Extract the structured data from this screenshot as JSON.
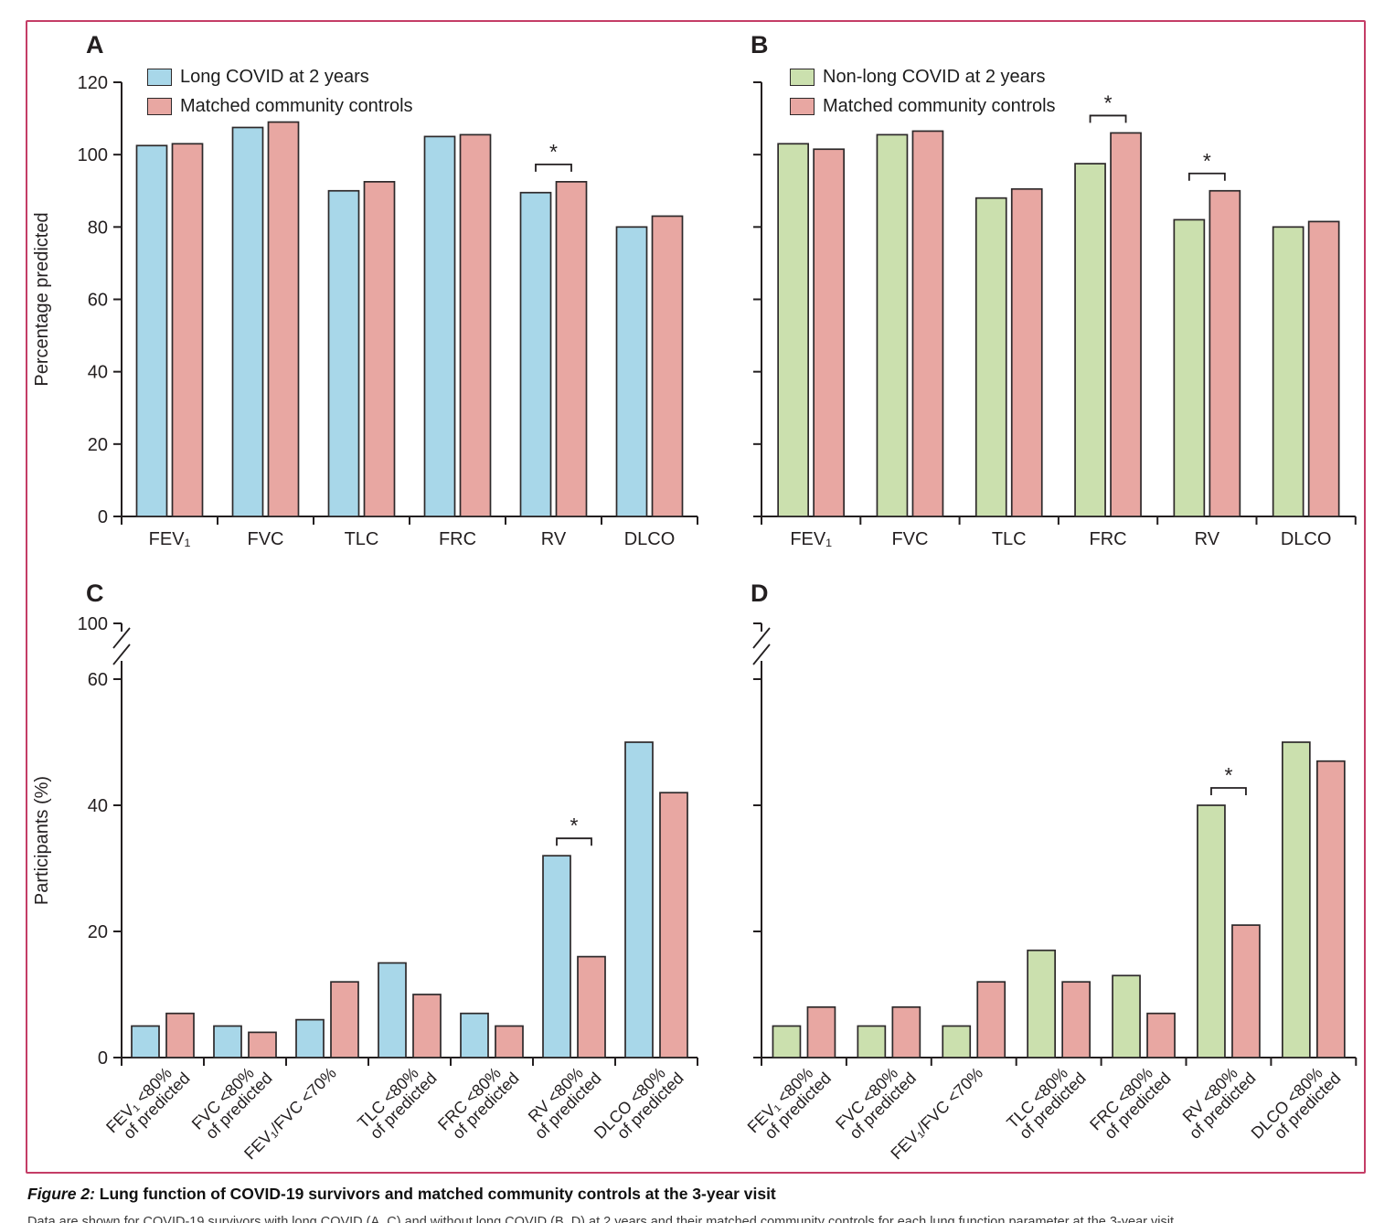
{
  "figure": {
    "border_color": "#c43d66",
    "axis_color": "#231f20",
    "caption": {
      "prefix": "Figure 2:",
      "title": " Lung function of COVID-19 survivors and matched community controls at the 3-year visit",
      "note_partial": "Data are shown for COVID-19 survivors with long COVID (A, C) and without long COVID (B, D) at 2 years and their matched community controls for each lung function parameter at the 3-year visit"
    }
  },
  "chart_data": [
    {
      "panel": "A",
      "type": "bar",
      "categories": [
        "FEV₁",
        "FVC",
        "TLC",
        "FRC",
        "RV",
        "DLCO"
      ],
      "series": [
        {
          "name": "Long COVID at 2 years",
          "color": "#a8d7e9",
          "values": [
            102.5,
            107.5,
            90,
            105,
            89.5,
            80
          ]
        },
        {
          "name": "Matched community controls",
          "color": "#e8a7a2",
          "values": [
            103,
            109,
            92.5,
            105.5,
            92.5,
            83
          ]
        }
      ],
      "ylabel": "Percentage predicted",
      "ylim": [
        0,
        120
      ],
      "yticks": [
        0,
        20,
        40,
        60,
        80,
        100,
        120
      ],
      "ytick_labels_visible": true,
      "axis_break": false,
      "legend_visible": true,
      "significance": [
        {
          "category": "RV",
          "category_index": 4,
          "label": "*"
        }
      ]
    },
    {
      "panel": "B",
      "type": "bar",
      "categories": [
        "FEV₁",
        "FVC",
        "TLC",
        "FRC",
        "RV",
        "DLCO"
      ],
      "series": [
        {
          "name": "Non-long COVID at 2 years",
          "color": "#cbe0ae",
          "values": [
            103,
            105.5,
            88,
            97.5,
            82,
            80
          ]
        },
        {
          "name": "Matched community controls",
          "color": "#e8a7a2",
          "values": [
            101.5,
            106.5,
            90.5,
            106,
            90,
            81.5
          ]
        }
      ],
      "ylabel": "",
      "ylim": [
        0,
        120
      ],
      "yticks": [
        0,
        20,
        40,
        60,
        80,
        100,
        120
      ],
      "ytick_labels_visible": false,
      "axis_break": false,
      "legend_visible": true,
      "significance": [
        {
          "category": "FRC",
          "category_index": 3,
          "label": "*"
        },
        {
          "category": "RV",
          "category_index": 4,
          "label": "*"
        }
      ]
    },
    {
      "panel": "C",
      "type": "bar",
      "categories": [
        [
          "FEV₁ <80%",
          "of predicted"
        ],
        [
          "FVC <80%",
          "of predicted"
        ],
        [
          "FEV₁/FVC <70%"
        ],
        [
          "TLC <80%",
          "of predicted"
        ],
        [
          "FRC <80%",
          "of predicted"
        ],
        [
          "RV <80%",
          "of predicted"
        ],
        [
          "DLCO <80%",
          "of predicted"
        ]
      ],
      "series": [
        {
          "name": "Long COVID at 2 years",
          "color": "#a8d7e9",
          "values": [
            5,
            5,
            6,
            15,
            7,
            32,
            50
          ]
        },
        {
          "name": "Matched community controls",
          "color": "#e8a7a2",
          "values": [
            7,
            4,
            12,
            10,
            5,
            16,
            42
          ]
        }
      ],
      "ylabel": "Participants (%)",
      "ylim": [
        0,
        100
      ],
      "yticks": [
        0,
        20,
        40,
        60,
        100
      ],
      "ytick_labels_visible": true,
      "axis_break": true,
      "axis_break_between": [
        60,
        100
      ],
      "legend_visible": false,
      "significance": [
        {
          "category": "RV <80% of predicted",
          "category_index": 5,
          "label": "*"
        }
      ]
    },
    {
      "panel": "D",
      "type": "bar",
      "categories": [
        [
          "FEV₁ <80%",
          "of predicted"
        ],
        [
          "FVC <80%",
          "of predicted"
        ],
        [
          "FEV₁/FVC <70%"
        ],
        [
          "TLC <80%",
          "of predicted"
        ],
        [
          "FRC <80%",
          "of predicted"
        ],
        [
          "RV <80%",
          "of predicted"
        ],
        [
          "DLCO <80%",
          "of predicted"
        ]
      ],
      "series": [
        {
          "name": "Non-long COVID at 2 years",
          "color": "#cbe0ae",
          "values": [
            5,
            5,
            5,
            17,
            13,
            40,
            50
          ]
        },
        {
          "name": "Matched community controls",
          "color": "#e8a7a2",
          "values": [
            8,
            8,
            12,
            12,
            7,
            21,
            47
          ]
        }
      ],
      "ylabel": "",
      "ylim": [
        0,
        100
      ],
      "yticks": [
        0,
        20,
        40,
        60,
        100
      ],
      "ytick_labels_visible": false,
      "axis_break": true,
      "axis_break_between": [
        60,
        100
      ],
      "legend_visible": false,
      "significance": [
        {
          "category": "RV <80% of predicted",
          "category_index": 5,
          "label": "*"
        }
      ]
    }
  ]
}
